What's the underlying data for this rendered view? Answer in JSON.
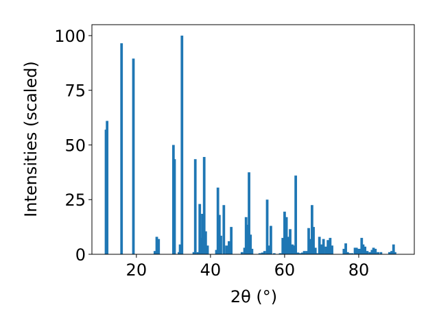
{
  "chart_data": {
    "type": "bar",
    "xlabel": "2θ (°)",
    "ylabel": "Intensities (scaled)",
    "xlim": [
      8,
      95
    ],
    "ylim": [
      0,
      105
    ],
    "x_ticks": [
      20,
      40,
      60,
      80
    ],
    "y_ticks": [
      0,
      25,
      50,
      75,
      100
    ],
    "bar_width": 0.7,
    "color": "#1f77b4",
    "bars": [
      {
        "x": 11.8,
        "y": 57
      },
      {
        "x": 12.1,
        "y": 61
      },
      {
        "x": 16.0,
        "y": 96.5
      },
      {
        "x": 19.2,
        "y": 89.5
      },
      {
        "x": 25.0,
        "y": 1.5
      },
      {
        "x": 25.5,
        "y": 8
      },
      {
        "x": 26.0,
        "y": 7
      },
      {
        "x": 30.0,
        "y": 50
      },
      {
        "x": 30.3,
        "y": 43.5
      },
      {
        "x": 31.5,
        "y": 1
      },
      {
        "x": 31.8,
        "y": 4.5
      },
      {
        "x": 32.3,
        "y": 100
      },
      {
        "x": 35.5,
        "y": 1
      },
      {
        "x": 35.9,
        "y": 43.5
      },
      {
        "x": 36.6,
        "y": 1
      },
      {
        "x": 37.1,
        "y": 23
      },
      {
        "x": 37.5,
        "y": 7.5
      },
      {
        "x": 37.8,
        "y": 18.5
      },
      {
        "x": 38.3,
        "y": 44.5
      },
      {
        "x": 38.7,
        "y": 10.5
      },
      {
        "x": 39.2,
        "y": 4
      },
      {
        "x": 41.6,
        "y": 2
      },
      {
        "x": 42.0,
        "y": 30.5
      },
      {
        "x": 42.4,
        "y": 18
      },
      {
        "x": 42.8,
        "y": 8.5
      },
      {
        "x": 43.6,
        "y": 22.5
      },
      {
        "x": 44.3,
        "y": 4
      },
      {
        "x": 45.0,
        "y": 6
      },
      {
        "x": 45.6,
        "y": 12.5
      },
      {
        "x": 48.5,
        "y": 1
      },
      {
        "x": 49.2,
        "y": 3
      },
      {
        "x": 49.6,
        "y": 17
      },
      {
        "x": 50.0,
        "y": 13.5
      },
      {
        "x": 50.4,
        "y": 37.5
      },
      {
        "x": 50.8,
        "y": 9
      },
      {
        "x": 51.2,
        "y": 2.5
      },
      {
        "x": 53.3,
        "y": 0.5
      },
      {
        "x": 54.0,
        "y": 0.8
      },
      {
        "x": 54.6,
        "y": 1.5
      },
      {
        "x": 55.3,
        "y": 25
      },
      {
        "x": 55.7,
        "y": 4
      },
      {
        "x": 56.3,
        "y": 13
      },
      {
        "x": 57.2,
        "y": 0.5
      },
      {
        "x": 58.8,
        "y": 0.5
      },
      {
        "x": 59.5,
        "y": 7.5
      },
      {
        "x": 60.0,
        "y": 19.5
      },
      {
        "x": 60.5,
        "y": 17
      },
      {
        "x": 61.0,
        "y": 8
      },
      {
        "x": 61.5,
        "y": 11.5
      },
      {
        "x": 62.1,
        "y": 4.5
      },
      {
        "x": 62.5,
        "y": 4
      },
      {
        "x": 63.0,
        "y": 36
      },
      {
        "x": 63.6,
        "y": 0.8
      },
      {
        "x": 64.2,
        "y": 0.5
      },
      {
        "x": 64.8,
        "y": 0.8
      },
      {
        "x": 65.3,
        "y": 1.5
      },
      {
        "x": 66.0,
        "y": 1.5
      },
      {
        "x": 66.5,
        "y": 12
      },
      {
        "x": 67.0,
        "y": 7
      },
      {
        "x": 67.4,
        "y": 22.5
      },
      {
        "x": 67.8,
        "y": 12.5
      },
      {
        "x": 68.3,
        "y": 3
      },
      {
        "x": 68.7,
        "y": 0.5
      },
      {
        "x": 69.4,
        "y": 8
      },
      {
        "x": 69.9,
        "y": 4.5
      },
      {
        "x": 70.5,
        "y": 7
      },
      {
        "x": 71.2,
        "y": 3.5
      },
      {
        "x": 71.7,
        "y": 6.5
      },
      {
        "x": 72.3,
        "y": 7.5
      },
      {
        "x": 72.8,
        "y": 4
      },
      {
        "x": 76.0,
        "y": 2.5
      },
      {
        "x": 76.5,
        "y": 5
      },
      {
        "x": 77.0,
        "y": 1
      },
      {
        "x": 77.5,
        "y": 0.5
      },
      {
        "x": 78.2,
        "y": 0.5
      },
      {
        "x": 79.0,
        "y": 3
      },
      {
        "x": 79.4,
        "y": 3
      },
      {
        "x": 79.9,
        "y": 2.5
      },
      {
        "x": 80.3,
        "y": 2.5
      },
      {
        "x": 80.8,
        "y": 7.5
      },
      {
        "x": 81.2,
        "y": 4.5
      },
      {
        "x": 81.7,
        "y": 3.5
      },
      {
        "x": 82.3,
        "y": 1.5
      },
      {
        "x": 83.0,
        "y": 1
      },
      {
        "x": 83.6,
        "y": 2
      },
      {
        "x": 84.0,
        "y": 3
      },
      {
        "x": 84.5,
        "y": 2.5
      },
      {
        "x": 85.2,
        "y": 1
      },
      {
        "x": 86.0,
        "y": 1
      },
      {
        "x": 88.3,
        "y": 1
      },
      {
        "x": 88.9,
        "y": 1.5
      },
      {
        "x": 89.4,
        "y": 4.5
      },
      {
        "x": 89.8,
        "y": 1
      }
    ]
  }
}
